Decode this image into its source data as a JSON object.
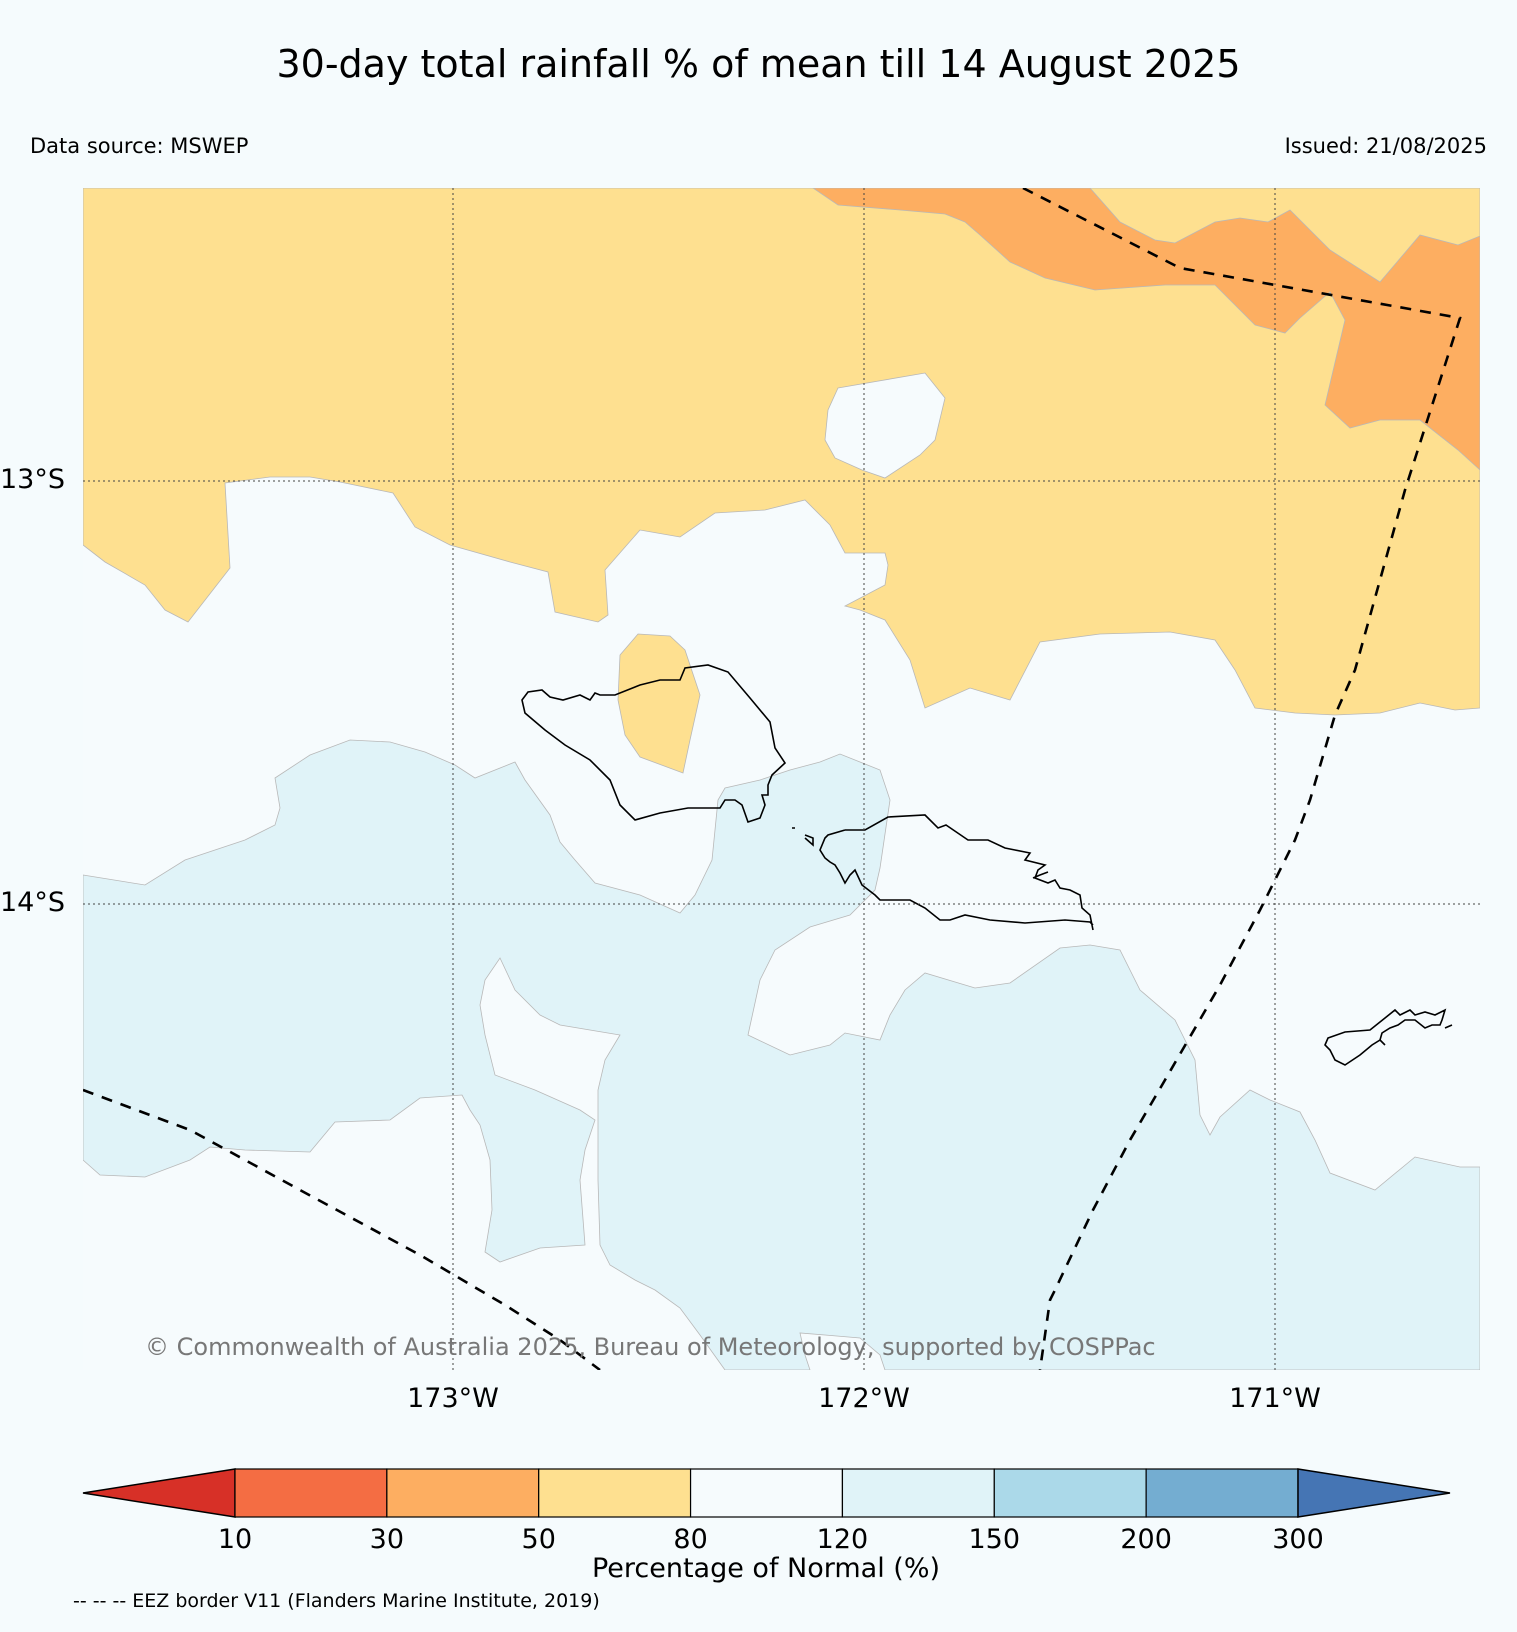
{
  "title": "30-day total rainfall % of mean till 14 August 2025",
  "data_source": "Data source: MSWEP",
  "issued": "Issued: 21/08/2025",
  "copyright": "© Commonwealth of Australia 2025, Bureau of Meteorology, supported by COSPPac",
  "lat_labels": [
    "13°S",
    "14°S"
  ],
  "lon_labels": [
    "173°W",
    "172°W",
    "171°W"
  ],
  "legend": {
    "label": "Percentage of Normal (%)",
    "ticks": [
      "10",
      "30",
      "50",
      "80",
      "120",
      "150",
      "200",
      "300"
    ],
    "colors": [
      "#d73027",
      "#f46d43",
      "#fdae61",
      "#fee090",
      "#f6fbfd",
      "#e0f3f8",
      "#abd9e9",
      "#74add1",
      "#4575b4"
    ]
  },
  "footnote": "-- -- -- EEZ border V11 (Flanders Marine Institute, 2019)"
}
